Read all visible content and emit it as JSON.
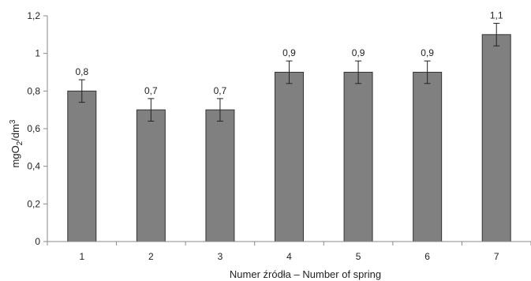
{
  "chart_data": {
    "type": "bar",
    "categories": [
      "1",
      "2",
      "3",
      "4",
      "5",
      "6",
      "7"
    ],
    "values": [
      0.8,
      0.7,
      0.7,
      0.9,
      0.9,
      0.9,
      1.1
    ],
    "value_labels": [
      "0,8",
      "0,7",
      "0,7",
      "0,9",
      "0,9",
      "0,9",
      "1,1"
    ],
    "error": [
      0.06,
      0.06,
      0.06,
      0.06,
      0.06,
      0.06,
      0.06
    ],
    "ylim": [
      0,
      1.2
    ],
    "yticks": [
      0,
      0.2,
      0.4,
      0.6,
      0.8,
      1,
      1.2
    ],
    "ytick_labels": [
      "0",
      "0,2",
      "0,4",
      "0,6",
      "0,8",
      "1",
      "1,2"
    ],
    "xlabel": "Numer źródła – Number of spring",
    "ylabel_parts": [
      "mgO",
      "2",
      "/dm",
      "3"
    ],
    "grid": false,
    "bar_color": "#808080",
    "bar_edge_color": "#333333",
    "axis_color": "#888888"
  }
}
